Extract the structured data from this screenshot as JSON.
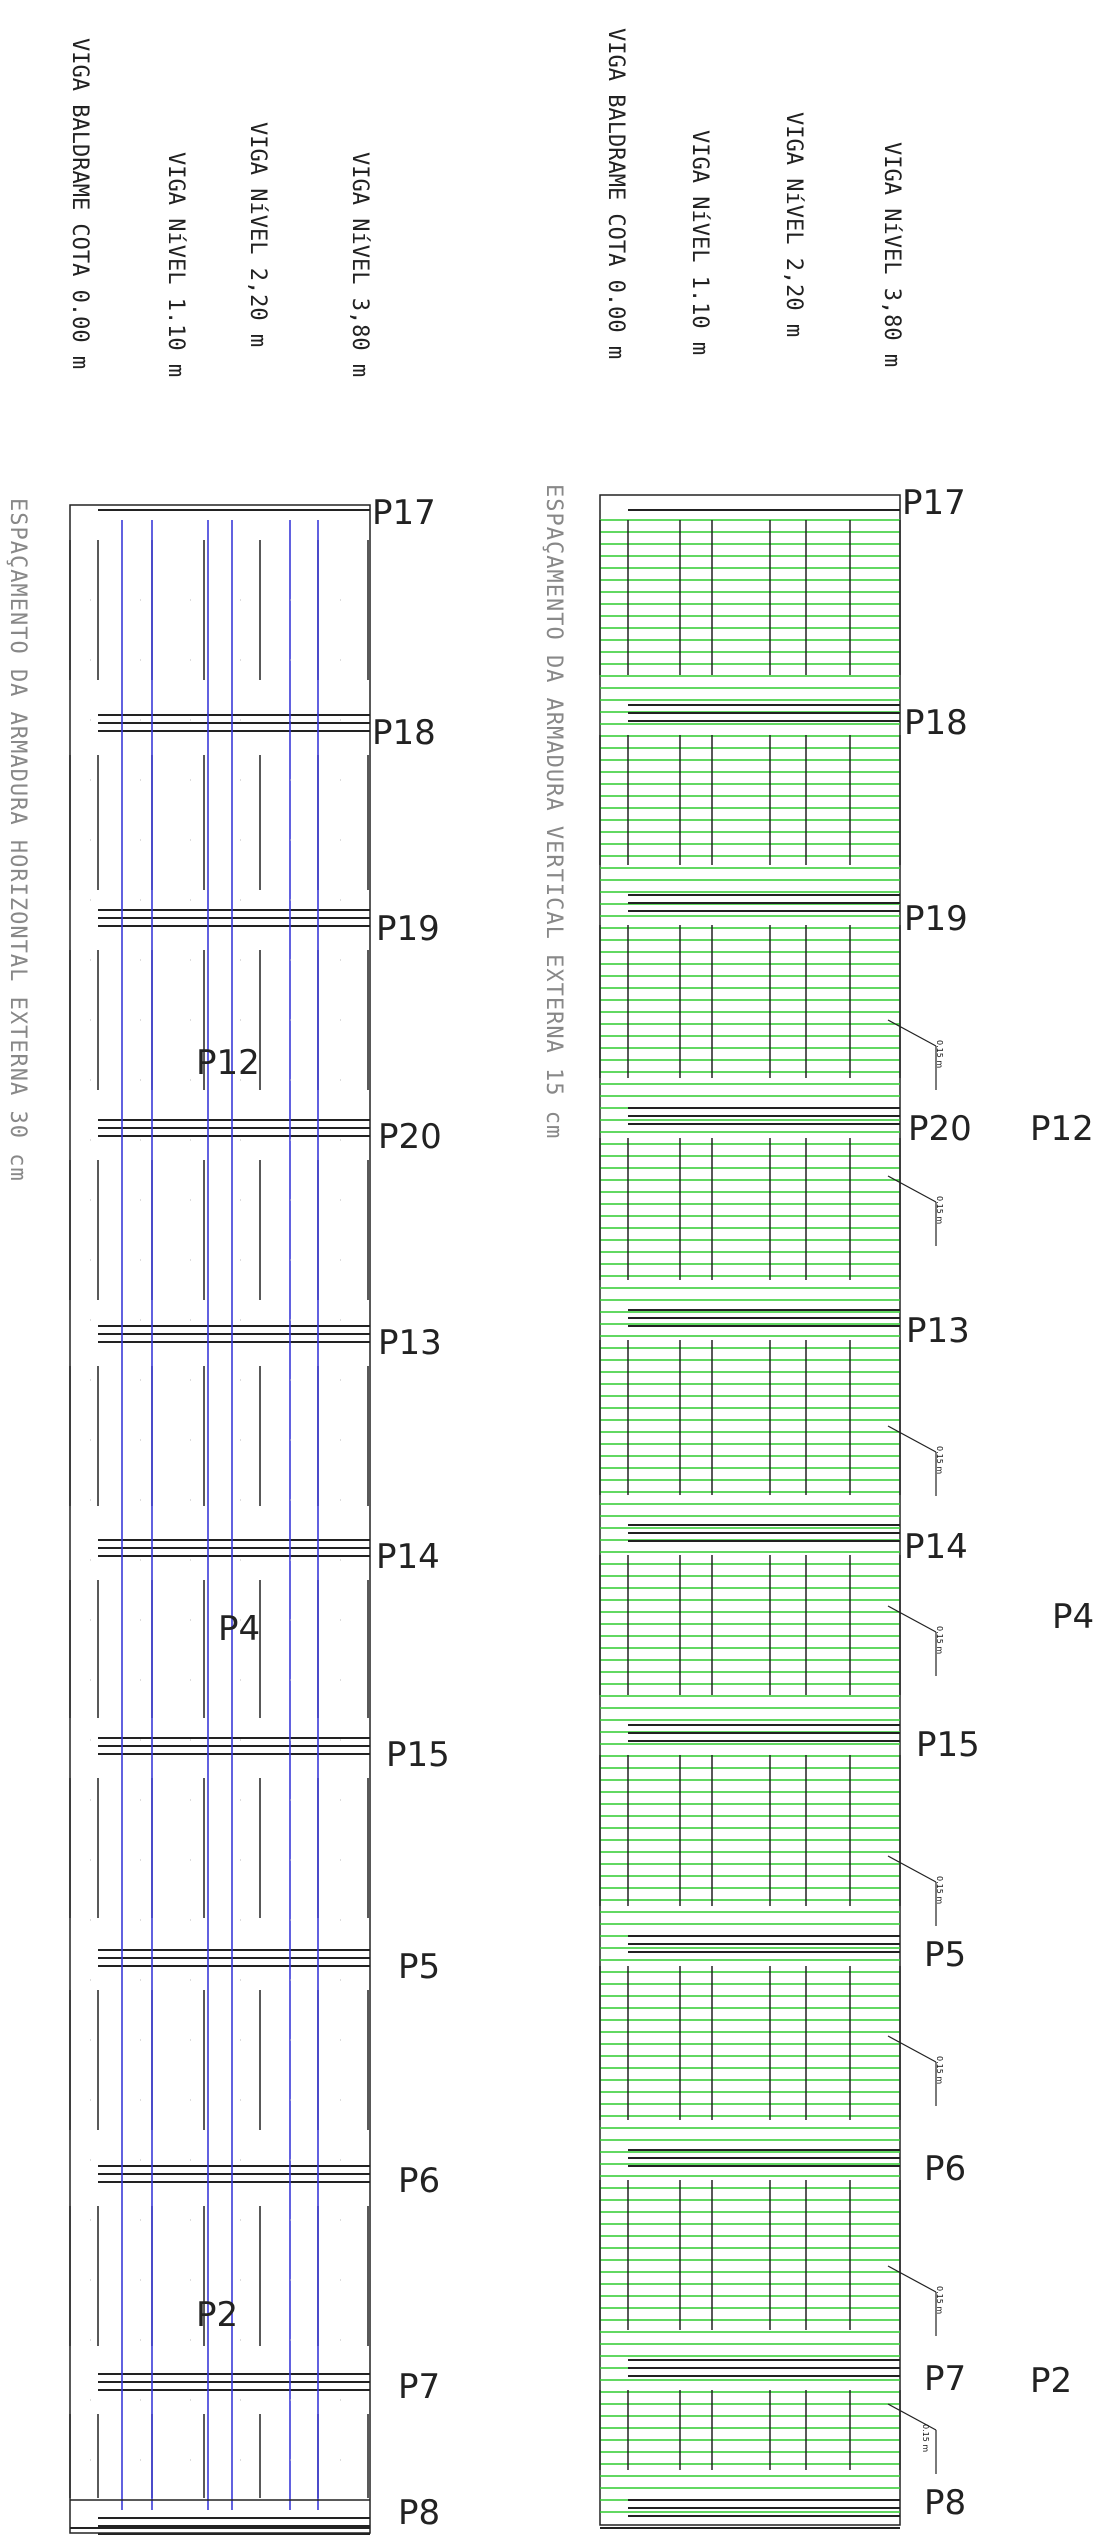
{
  "left_panel": {
    "beam_labels": [
      "VIGA BALDRAME COTA 0.00 m",
      "VIGA NíVEL 1.10 m",
      "VIGA NíVEL 2,20 m",
      "VIGA NíVEL 3,80 m"
    ],
    "spacing_note": "ESPAÇAMENTO DA ARMADURA HORIZONTAL EXTERNA 30 cm",
    "pillars": [
      "P17",
      "P18",
      "P19",
      "P20",
      "P13",
      "P14",
      "P15",
      "P5",
      "P6",
      "P7",
      "P8"
    ],
    "wall_labels": [
      "P12",
      "P4",
      "P2"
    ]
  },
  "right_panel": {
    "beam_labels": [
      "VIGA BALDRAME COTA 0.00 m",
      "VIGA NíVEL 1.10 m",
      "VIGA NíVEL 2,20 m",
      "VIGA NíVEL 3,80 m"
    ],
    "spacing_note": "ESPAÇAMENTO DA ARMADURA VERTICAL EXTERNA 15 cm",
    "pillars": [
      "P17",
      "P18",
      "P19",
      "P20",
      "P13",
      "P14",
      "P15",
      "P5",
      "P6",
      "P7",
      "P8"
    ],
    "wall_labels": [
      "P12",
      "P4",
      "P2"
    ],
    "dimension_label": "0.15 m"
  },
  "colors": {
    "ink": "#222222",
    "vertical_bar": "#3a3ad8",
    "horizontal_bar": "#2ecc2e",
    "note": "#888888"
  }
}
